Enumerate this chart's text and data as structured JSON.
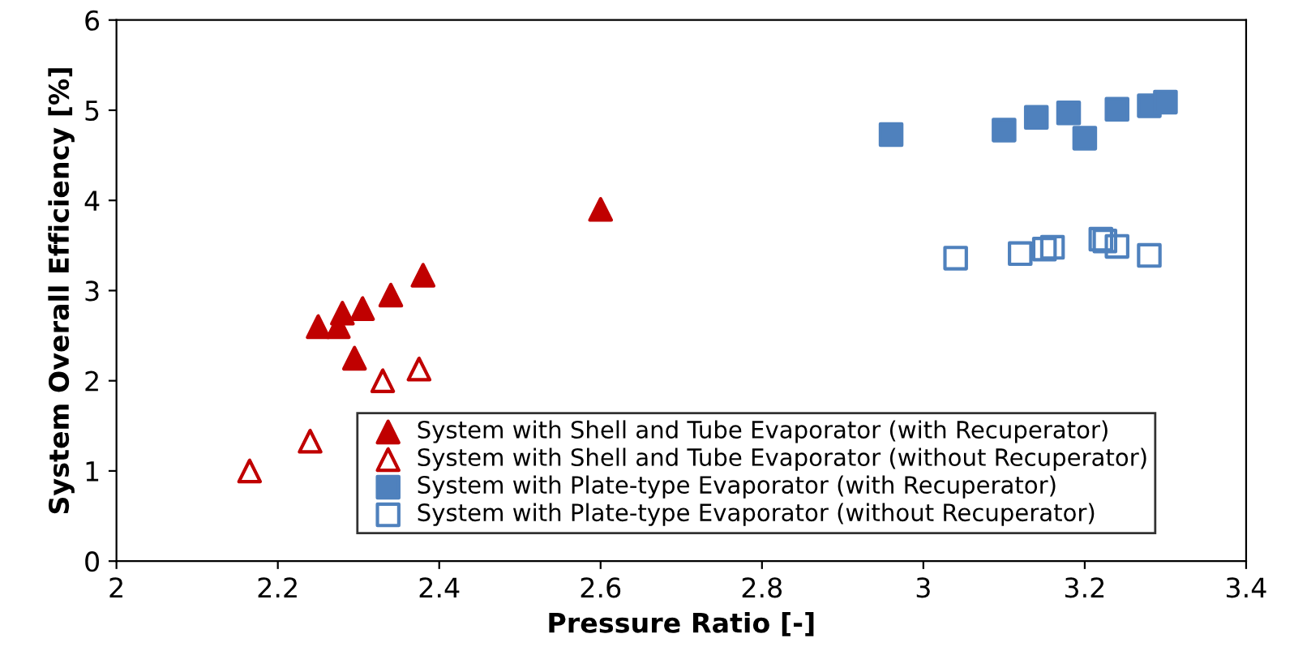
{
  "chart_data": {
    "type": "scatter",
    "xlabel": "Pressure Ratio [-]",
    "ylabel": "System Overall Efficiency [%]",
    "xlim": [
      2,
      3.4
    ],
    "xticks": [
      2,
      2.2,
      2.4,
      2.6,
      2.8,
      3,
      3.2,
      3.4
    ],
    "ylim": [
      0,
      6
    ],
    "yticks": [
      0,
      1,
      2,
      3,
      4,
      5,
      6
    ],
    "grid": false,
    "legend": "bottom right",
    "series": [
      {
        "name": "System with Shell and Tube Evaporator (with Recuperator)",
        "color": "#c00000",
        "marker": "triangle",
        "x": [
          2.25,
          2.275,
          2.28,
          2.295,
          2.305,
          2.34,
          2.38,
          2.6
        ],
        "values": [
          2.6,
          2.6,
          2.75,
          2.25,
          2.8,
          2.95,
          3.17,
          3.9
        ]
      },
      {
        "name": "System with Shell and Tube Evaporator (without Recuperator)",
        "color": "#c00000",
        "marker": "triangle",
        "x": [
          2.165,
          2.24,
          2.33,
          2.375
        ],
        "values": [
          1.0,
          1.33,
          2.0,
          2.13
        ]
      },
      {
        "name": "System with Plate-type Evaporator (with Recuperator)",
        "color": "#4f81bd",
        "marker": "square",
        "x": [
          2.96,
          3.1,
          3.14,
          3.18,
          3.2,
          3.24,
          3.28,
          3.3
        ],
        "values": [
          4.73,
          4.78,
          4.92,
          4.97,
          4.69,
          5.01,
          5.05,
          5.09
        ]
      },
      {
        "name": "System with Plate-type Evaporator (without Recuperator)",
        "color": "#4f81bd",
        "marker": "square",
        "x": [
          3.04,
          3.12,
          3.15,
          3.16,
          3.22,
          3.225,
          3.24,
          3.28
        ],
        "values": [
          3.36,
          3.41,
          3.46,
          3.48,
          3.57,
          3.55,
          3.49,
          3.39
        ]
      }
    ]
  }
}
